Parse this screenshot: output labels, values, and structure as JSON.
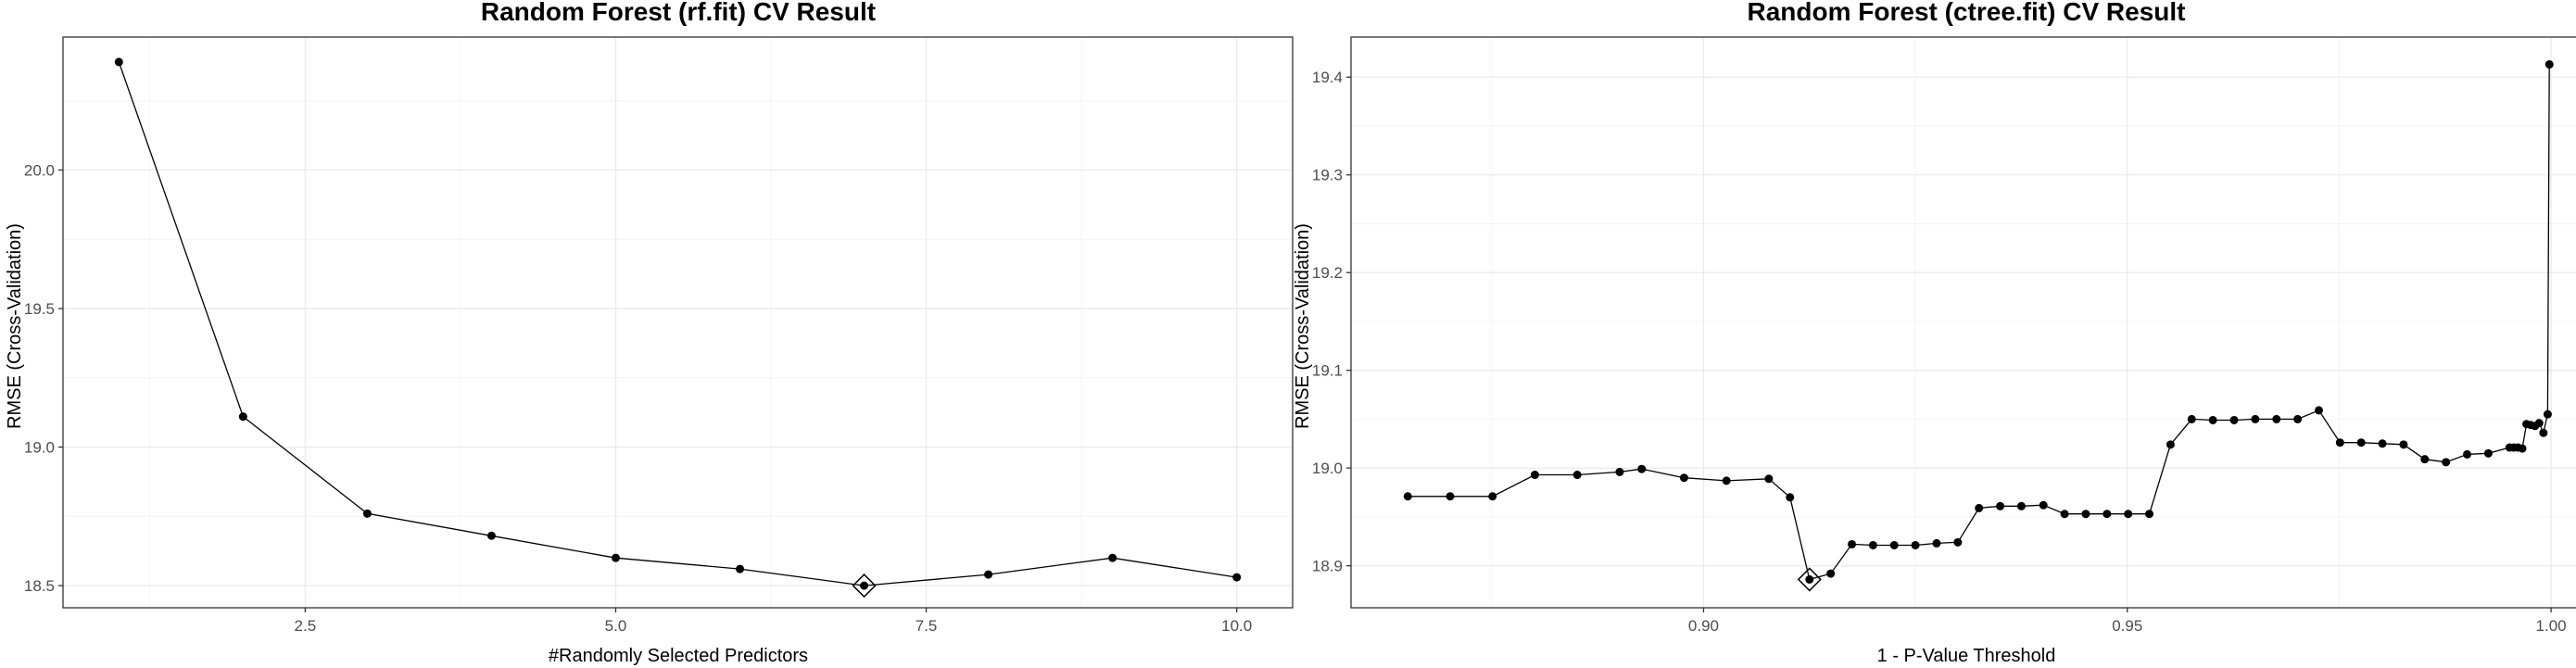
{
  "chart_data": [
    {
      "type": "line",
      "title": "Random Forest (rf.fit) CV Result",
      "xlabel": "#Randomly Selected Predictors",
      "ylabel": "RMSE (Cross-Validation)",
      "xlim": [
        0.55,
        10.45
      ],
      "ylim": [
        18.42,
        20.48
      ],
      "xticks": [
        2.5,
        5.0,
        7.5,
        10.0
      ],
      "xtick_labels": [
        "2.5",
        "5.0",
        "7.5",
        "10.0"
      ],
      "yticks": [
        18.5,
        19.0,
        19.5,
        20.0
      ],
      "ytick_labels": [
        "18.5",
        "19.0",
        "19.5",
        "20.0"
      ],
      "grid": true,
      "legend": "none",
      "best_point": {
        "x": 7,
        "y": 18.5
      },
      "series": [
        {
          "x": [
            1,
            2,
            3,
            4,
            5,
            6,
            7,
            8,
            9,
            10
          ],
          "y": [
            20.39,
            19.11,
            18.76,
            18.68,
            18.6,
            18.56,
            18.5,
            18.54,
            18.6,
            18.53
          ]
        }
      ]
    },
    {
      "type": "line",
      "title": "Random Forest (ctree.fit) CV Result",
      "xlabel": "1 - P-Value Threshold",
      "ylabel": "RMSE (Cross-Validation)",
      "xlim": [
        0.8584,
        1.0036
      ],
      "ylim": [
        18.857,
        19.441
      ],
      "xticks": [
        0.9,
        0.95,
        1.0
      ],
      "xtick_labels": [
        "0.90",
        "0.95",
        "1.00"
      ],
      "yticks": [
        18.9,
        19.0,
        19.1,
        19.2,
        19.3,
        19.4
      ],
      "ytick_labels": [
        "18.9",
        "19.0",
        "19.1",
        "19.2",
        "19.3",
        "19.4"
      ],
      "grid": true,
      "legend": "none",
      "best_point": {
        "x": 0.9125,
        "y": 18.886
      },
      "series": [
        {
          "x": [
            0.8651,
            0.8701,
            0.8751,
            0.8801,
            0.8851,
            0.8901,
            0.8927,
            0.8977,
            0.9027,
            0.9077,
            0.9102,
            0.9125,
            0.915,
            0.9175,
            0.92,
            0.9225,
            0.925,
            0.9275,
            0.93,
            0.9325,
            0.935,
            0.9375,
            0.9401,
            0.9426,
            0.9451,
            0.9476,
            0.9501,
            0.9526,
            0.9551,
            0.9576,
            0.9601,
            0.9626,
            0.9651,
            0.9676,
            0.9701,
            0.9726,
            0.9751,
            0.9776,
            0.9801,
            0.9826,
            0.9851,
            0.9876,
            0.9901,
            0.9926,
            0.9951,
            0.9956,
            0.9961,
            0.9966,
            0.9971,
            0.9976,
            0.9981,
            0.9986,
            0.9991,
            0.9996,
            0.9998
          ],
          "y": [
            18.971,
            18.971,
            18.971,
            18.993,
            18.993,
            18.996,
            18.999,
            18.99,
            18.987,
            18.989,
            18.97,
            18.886,
            18.892,
            18.922,
            18.921,
            18.921,
            18.921,
            18.923,
            18.924,
            18.959,
            18.961,
            18.961,
            18.962,
            18.953,
            18.953,
            18.953,
            18.953,
            18.953,
            19.024,
            19.05,
            19.049,
            19.049,
            19.05,
            19.05,
            19.05,
            19.059,
            19.026,
            19.026,
            19.025,
            19.024,
            19.009,
            19.006,
            19.014,
            19.015,
            19.021,
            19.021,
            19.021,
            19.02,
            19.045,
            19.044,
            19.043,
            19.046,
            19.036,
            19.055,
            19.413
          ]
        }
      ]
    }
  ]
}
